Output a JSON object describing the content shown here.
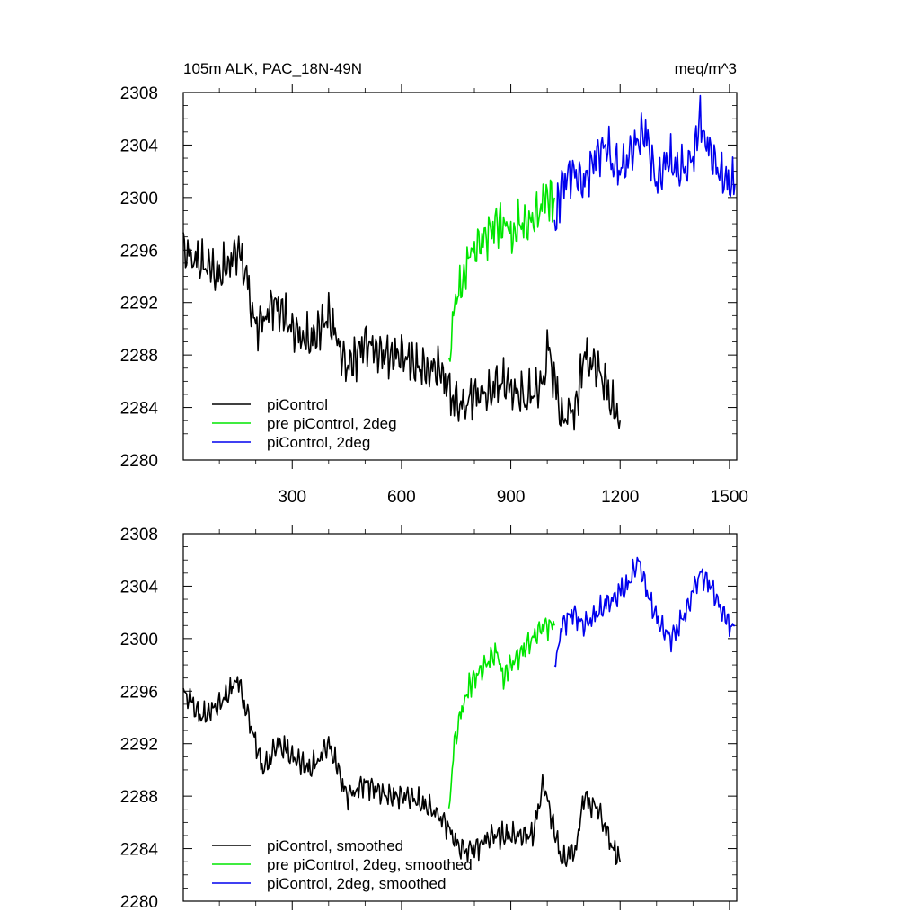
{
  "chart_data": [
    {
      "type": "line",
      "title_left": "105m ALK, PAC_18N-49N",
      "title_right": "meq/m^3",
      "xlim": [
        1,
        1520
      ],
      "ylim": [
        2280,
        2308
      ],
      "xticks": [
        300,
        600,
        900,
        1200,
        1500
      ],
      "xtick_labels": [
        "300",
        "600",
        "900",
        "1200",
        "1500"
      ],
      "yticks": [
        2280,
        2284,
        2288,
        2292,
        2296,
        2300,
        2304,
        2308
      ],
      "ytick_labels": [
        "2280",
        "2284",
        "2288",
        "2292",
        "2296",
        "2300",
        "2304",
        "2308"
      ],
      "legend": [
        "piControl",
        "pre piControl, 2deg",
        "piControl, 2deg"
      ],
      "legend_position": "bottom-left",
      "grid": false,
      "series": [
        {
          "name": "piControl",
          "color": "#000000",
          "x": [
            1,
            50,
            100,
            150,
            175,
            200,
            250,
            300,
            350,
            400,
            450,
            500,
            550,
            600,
            650,
            700,
            720,
            760,
            800,
            840,
            880,
            920,
            960,
            990,
            1000,
            1040,
            1080,
            1100,
            1140,
            1180,
            1200
          ],
          "y": [
            2296,
            2295,
            2294,
            2296,
            2294,
            2290,
            2292,
            2290,
            2289,
            2291,
            2287,
            2289,
            2288,
            2288,
            2287,
            2287,
            2286,
            2284,
            2285,
            2285,
            2286,
            2285,
            2285,
            2286,
            2289,
            2283,
            2284,
            2288,
            2287,
            2284,
            2283
          ]
        },
        {
          "name": "pre piControl, 2deg",
          "color": "#00e600",
          "x": [
            730,
            740,
            760,
            780,
            800,
            830,
            860,
            880,
            900,
            920,
            950,
            980,
            1000,
            1020
          ],
          "y": [
            2287,
            2291,
            2293,
            2295,
            2296,
            2297,
            2298,
            2298,
            2297,
            2298,
            2298,
            2299,
            2300,
            2300
          ]
        },
        {
          "name": "piControl, 2deg",
          "color": "#0000ee",
          "x": [
            1020,
            1040,
            1070,
            1100,
            1130,
            1160,
            1200,
            1240,
            1270,
            1300,
            1330,
            1360,
            1400,
            1420,
            1440,
            1470,
            1500,
            1515
          ],
          "y": [
            2298,
            2301,
            2302,
            2301,
            2303,
            2304,
            2302,
            2304,
            2305,
            2301,
            2303,
            2302,
            2303,
            2306,
            2304,
            2302,
            2301,
            2301
          ]
        }
      ]
    },
    {
      "type": "line",
      "xlim": [
        1,
        1520
      ],
      "ylim": [
        2280,
        2308
      ],
      "xticks": [
        300,
        600,
        900,
        1200,
        1500
      ],
      "yticks": [
        2280,
        2284,
        2288,
        2292,
        2296,
        2300,
        2304,
        2308
      ],
      "ytick_labels": [
        "2280",
        "2284",
        "2288",
        "2292",
        "2296",
        "2300",
        "2304",
        "2308"
      ],
      "legend": [
        "piControl, smoothed",
        "pre piControl, 2deg, smoothed",
        "piControl, 2deg, smoothed"
      ],
      "legend_position": "bottom-left",
      "grid": false,
      "series": [
        {
          "name": "piControl, smoothed",
          "color": "#000000",
          "x": [
            1,
            50,
            100,
            130,
            150,
            190,
            220,
            260,
            300,
            350,
            400,
            450,
            500,
            560,
            620,
            680,
            720,
            760,
            800,
            850,
            900,
            960,
            990,
            1040,
            1080,
            1100,
            1140,
            1180,
            1200
          ],
          "y": [
            2296,
            2294,
            2295,
            2296,
            2297,
            2293,
            2290,
            2292,
            2291,
            2290,
            2292,
            2288,
            2289,
            2288,
            2288,
            2287,
            2286,
            2284,
            2284,
            2285,
            2285,
            2285,
            2289,
            2283,
            2284,
            2288,
            2287,
            2284,
            2283
          ]
        },
        {
          "name": "pre piControl, 2deg, smoothed",
          "color": "#00e600",
          "x": [
            730,
            745,
            760,
            780,
            800,
            830,
            860,
            880,
            900,
            930,
            960,
            990,
            1020
          ],
          "y": [
            2287,
            2292,
            2294,
            2296,
            2297,
            2298,
            2299,
            2297,
            2298,
            2299,
            2300,
            2301,
            2301
          ]
        },
        {
          "name": "piControl, 2deg, smoothed",
          "color": "#0000ee",
          "x": [
            1020,
            1040,
            1070,
            1100,
            1140,
            1180,
            1220,
            1250,
            1280,
            1310,
            1340,
            1380,
            1420,
            1450,
            1480,
            1500,
            1515
          ],
          "y": [
            2298,
            2301,
            2302,
            2301,
            2302,
            2303,
            2304,
            2306,
            2303,
            2301,
            2300,
            2302,
            2305,
            2304,
            2302,
            2301,
            2301
          ]
        }
      ]
    }
  ]
}
